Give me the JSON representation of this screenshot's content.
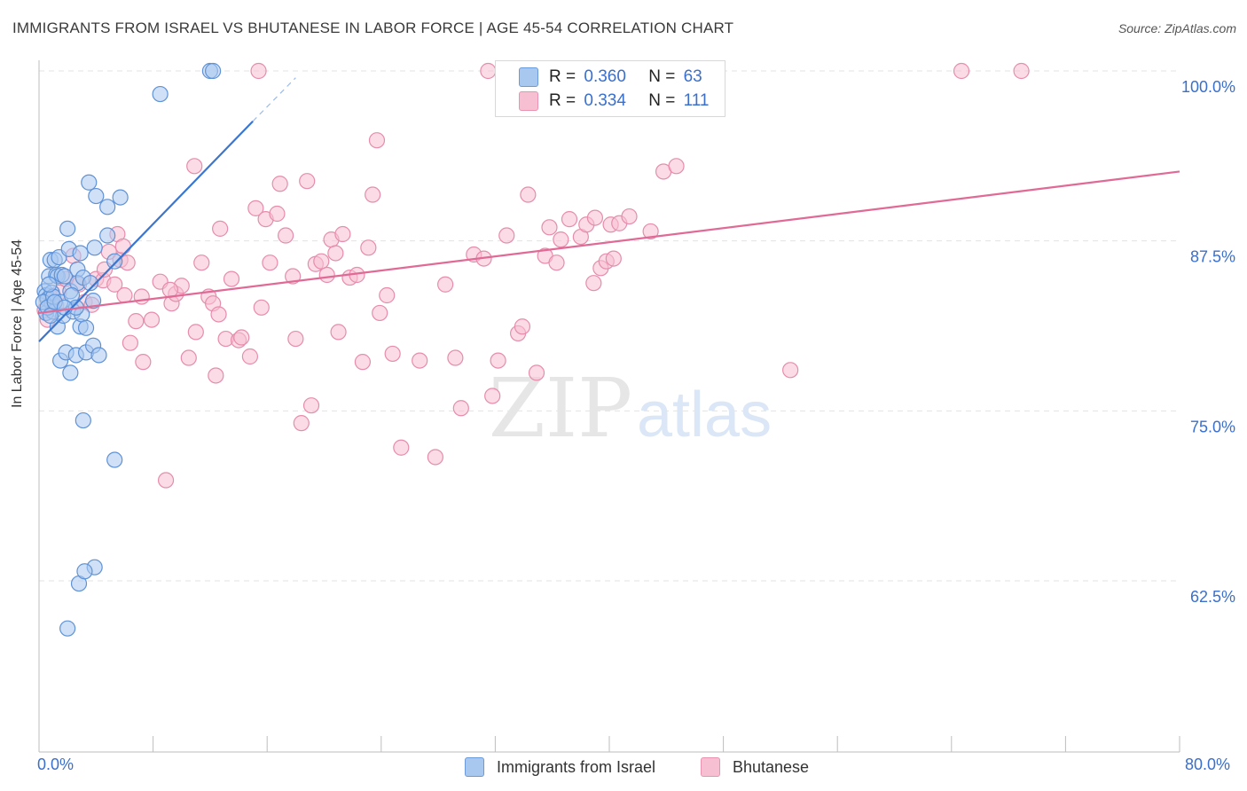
{
  "title": "IMMIGRANTS FROM ISRAEL VS BHUTANESE IN LABOR FORCE | AGE 45-54 CORRELATION CHART",
  "source": "Source: ZipAtlas.com",
  "watermark": {
    "zip": "ZIP",
    "atlas": "atlas"
  },
  "legend_top": [
    {
      "r_label": "R =",
      "r_value": "0.360",
      "n_label": "N =",
      "n_value": "63",
      "color": "#a9c8f0",
      "border": "#6a9ad8"
    },
    {
      "r_label": "R =",
      "r_value": "0.334",
      "n_label": "N =",
      "n_value": "111",
      "color": "#f7bfd2",
      "border": "#e893b1"
    }
  ],
  "legend_bottom": [
    {
      "label": "Immigrants from Israel",
      "color": "#a9c8f0",
      "border": "#6a9ad8"
    },
    {
      "label": "Bhutanese",
      "color": "#f7bfd2",
      "border": "#e893b1"
    }
  ],
  "x_min_label": "0.0%",
  "x_max_label": "80.0%",
  "colors": {
    "blue": "#3a76d0",
    "pink": "#e06a95",
    "axis_text": "#3a6fcc",
    "grid": "#e3e3e3"
  },
  "chart_data": {
    "type": "scatter",
    "title": "IMMIGRANTS FROM ISRAEL VS BHUTANESE IN LABOR FORCE | AGE 45-54 CORRELATION CHART",
    "xlabel": "",
    "ylabel": "In Labor Force | Age 45-54",
    "xlim": [
      0,
      80
    ],
    "ylim": [
      50,
      101.5
    ],
    "y_ticks": [
      62.5,
      75.0,
      87.5,
      100.0
    ],
    "y_tick_labels": [
      "62.5%",
      "75.0%",
      "87.5%",
      "100.0%"
    ],
    "x_tick_labels": [
      "0.0%",
      "80.0%"
    ],
    "series": [
      {
        "name": "Immigrants from Israel",
        "R": 0.36,
        "N": 63,
        "trend": {
          "x0": 0.0,
          "y0": 80.1,
          "x1": 15.0,
          "y1": 96.3,
          "dash_to_x": 18.0,
          "dash_to_y": 99.5
        },
        "points": [
          [
            0.4,
            83.8
          ],
          [
            0.5,
            83.5
          ],
          [
            0.5,
            82.2
          ],
          [
            0.6,
            83.2
          ],
          [
            0.7,
            84.9
          ],
          [
            0.8,
            86.1
          ],
          [
            0.9,
            82.9
          ],
          [
            0.9,
            83.7
          ],
          [
            1.0,
            82.3
          ],
          [
            1.1,
            86.1
          ],
          [
            1.2,
            85.0
          ],
          [
            1.3,
            84.9
          ],
          [
            1.3,
            81.2
          ],
          [
            1.4,
            86.3
          ],
          [
            1.5,
            78.7
          ],
          [
            1.6,
            85.0
          ],
          [
            1.7,
            82.0
          ],
          [
            1.8,
            84.9
          ],
          [
            1.9,
            79.3
          ],
          [
            2.0,
            88.4
          ],
          [
            2.1,
            86.9
          ],
          [
            2.2,
            83.8
          ],
          [
            2.2,
            77.8
          ],
          [
            2.4,
            82.3
          ],
          [
            2.6,
            79.1
          ],
          [
            2.7,
            85.4
          ],
          [
            2.7,
            84.4
          ],
          [
            2.9,
            81.2
          ],
          [
            2.9,
            86.6
          ],
          [
            3.0,
            82.1
          ],
          [
            3.1,
            74.3
          ],
          [
            3.1,
            84.8
          ],
          [
            3.3,
            79.3
          ],
          [
            3.3,
            81.1
          ],
          [
            3.5,
            91.8
          ],
          [
            3.6,
            84.4
          ],
          [
            3.8,
            83.1
          ],
          [
            3.8,
            79.8
          ],
          [
            3.9,
            87.0
          ],
          [
            3.9,
            63.5
          ],
          [
            4.0,
            90.8
          ],
          [
            4.2,
            79.1
          ],
          [
            4.8,
            87.9
          ],
          [
            4.8,
            90.0
          ],
          [
            5.3,
            86.0
          ],
          [
            5.3,
            71.4
          ],
          [
            5.7,
            90.7
          ],
          [
            8.5,
            98.3
          ],
          [
            12.0,
            100.0
          ],
          [
            12.2,
            100.0
          ],
          [
            2.8,
            62.3
          ],
          [
            3.2,
            63.2
          ],
          [
            2.0,
            59.0
          ],
          [
            0.3,
            83.0
          ],
          [
            0.6,
            82.6
          ],
          [
            1.0,
            83.4
          ],
          [
            0.8,
            82.0
          ],
          [
            1.5,
            83.0
          ],
          [
            2.3,
            83.5
          ],
          [
            2.6,
            82.6
          ],
          [
            1.1,
            83.0
          ],
          [
            0.7,
            84.3
          ],
          [
            1.8,
            82.6
          ]
        ]
      },
      {
        "name": "Bhutanese",
        "R": 0.334,
        "N": 111,
        "trend": {
          "x0": 0.0,
          "y0": 82.2,
          "x1": 80.0,
          "y1": 92.6
        },
        "points": [
          [
            0.4,
            82.4
          ],
          [
            0.6,
            81.7
          ],
          [
            0.8,
            83.4
          ],
          [
            1.4,
            83.7
          ],
          [
            1.9,
            84.7
          ],
          [
            2.4,
            86.4
          ],
          [
            2.8,
            84.3
          ],
          [
            3.2,
            83.0
          ],
          [
            3.7,
            82.8
          ],
          [
            4.0,
            84.7
          ],
          [
            4.5,
            84.6
          ],
          [
            4.9,
            86.7
          ],
          [
            5.3,
            84.3
          ],
          [
            5.5,
            88.0
          ],
          [
            5.7,
            86.1
          ],
          [
            5.9,
            87.1
          ],
          [
            6.2,
            85.9
          ],
          [
            6.4,
            80.0
          ],
          [
            6.8,
            81.6
          ],
          [
            7.2,
            83.4
          ],
          [
            7.3,
            78.6
          ],
          [
            7.9,
            81.7
          ],
          [
            8.5,
            84.5
          ],
          [
            8.9,
            69.9
          ],
          [
            9.3,
            82.9
          ],
          [
            9.6,
            83.6
          ],
          [
            10.0,
            84.2
          ],
          [
            10.5,
            78.9
          ],
          [
            11.0,
            80.8
          ],
          [
            11.4,
            85.9
          ],
          [
            11.9,
            83.4
          ],
          [
            12.2,
            82.9
          ],
          [
            12.4,
            77.6
          ],
          [
            12.6,
            82.1
          ],
          [
            12.7,
            88.4
          ],
          [
            13.1,
            80.3
          ],
          [
            13.5,
            84.7
          ],
          [
            14.0,
            80.2
          ],
          [
            14.2,
            80.4
          ],
          [
            14.8,
            79.0
          ],
          [
            15.2,
            89.9
          ],
          [
            15.6,
            82.6
          ],
          [
            15.9,
            89.1
          ],
          [
            16.2,
            85.9
          ],
          [
            16.7,
            89.5
          ],
          [
            16.9,
            91.7
          ],
          [
            17.3,
            87.9
          ],
          [
            17.8,
            84.9
          ],
          [
            18.0,
            80.3
          ],
          [
            18.4,
            74.1
          ],
          [
            18.8,
            91.9
          ],
          [
            19.1,
            75.4
          ],
          [
            19.4,
            85.8
          ],
          [
            19.8,
            86.0
          ],
          [
            20.2,
            85.0
          ],
          [
            20.5,
            87.6
          ],
          [
            20.8,
            86.6
          ],
          [
            21.0,
            80.8
          ],
          [
            21.3,
            88.0
          ],
          [
            21.8,
            84.8
          ],
          [
            22.3,
            85.0
          ],
          [
            22.7,
            78.6
          ],
          [
            23.1,
            87.0
          ],
          [
            23.4,
            90.9
          ],
          [
            23.7,
            94.9
          ],
          [
            23.9,
            82.2
          ],
          [
            24.4,
            83.5
          ],
          [
            24.8,
            79.2
          ],
          [
            25.4,
            72.3
          ],
          [
            26.7,
            78.7
          ],
          [
            27.8,
            71.6
          ],
          [
            28.5,
            84.3
          ],
          [
            29.2,
            78.9
          ],
          [
            29.6,
            75.2
          ],
          [
            30.5,
            86.5
          ],
          [
            31.2,
            86.2
          ],
          [
            31.8,
            76.1
          ],
          [
            32.2,
            78.7
          ],
          [
            32.8,
            87.9
          ],
          [
            33.6,
            80.7
          ],
          [
            33.9,
            81.2
          ],
          [
            34.3,
            90.9
          ],
          [
            34.9,
            77.8
          ],
          [
            35.5,
            86.4
          ],
          [
            35.8,
            88.5
          ],
          [
            36.3,
            85.9
          ],
          [
            36.6,
            87.6
          ],
          [
            37.2,
            89.1
          ],
          [
            38.0,
            87.8
          ],
          [
            38.4,
            88.7
          ],
          [
            38.9,
            84.4
          ],
          [
            39.0,
            89.2
          ],
          [
            39.4,
            85.5
          ],
          [
            39.8,
            86.0
          ],
          [
            40.1,
            88.7
          ],
          [
            40.3,
            86.2
          ],
          [
            40.7,
            88.8
          ],
          [
            41.4,
            89.3
          ],
          [
            42.9,
            88.2
          ],
          [
            43.8,
            92.6
          ],
          [
            44.7,
            93.0
          ],
          [
            52.7,
            78.0
          ],
          [
            15.4,
            100.0
          ],
          [
            31.5,
            100.0
          ],
          [
            64.7,
            100.0
          ],
          [
            68.9,
            100.0
          ],
          [
            10.9,
            93.0
          ],
          [
            4.6,
            85.4
          ],
          [
            6.0,
            83.5
          ],
          [
            9.2,
            83.9
          ],
          [
            1.2,
            82.8
          ]
        ]
      }
    ]
  }
}
